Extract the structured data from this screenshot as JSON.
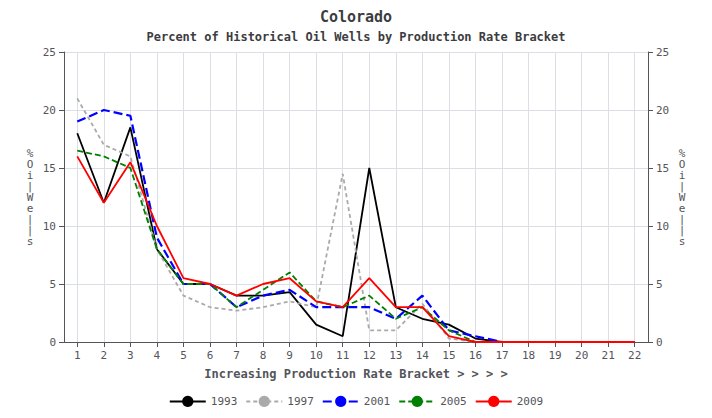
{
  "chart_data": {
    "type": "line",
    "title": "Colorado",
    "subtitle": "Percent of Historical Oil Wells by Production Rate Bracket",
    "xlabel": "Increasing Production Rate Bracket > > > >",
    "ylabel": "%\nO\ni\n|\nW\ne\n|\n|\ns",
    "y2label": "%\nO\ni\n|\nW\ne\n|\n|\ns",
    "x": [
      1,
      2,
      3,
      4,
      5,
      6,
      7,
      8,
      9,
      10,
      11,
      12,
      13,
      14,
      15,
      16,
      17,
      18,
      19,
      20,
      21,
      22
    ],
    "xlim": [
      0.5,
      22.5
    ],
    "xticks": [
      1,
      2,
      3,
      4,
      5,
      6,
      7,
      8,
      9,
      10,
      11,
      12,
      13,
      14,
      15,
      16,
      17,
      18,
      19,
      20,
      21,
      22
    ],
    "ylim": [
      0,
      25
    ],
    "yticks": [
      0,
      5,
      10,
      15,
      20,
      25
    ],
    "y2lim": [
      0,
      25
    ],
    "y2ticks": [
      0,
      5,
      10,
      15,
      20,
      25
    ],
    "grid": true,
    "legend": "bottom",
    "series": [
      {
        "name": "1993",
        "color": "#000000",
        "line_style": "solid",
        "values": [
          18,
          12,
          18.5,
          8,
          5,
          5,
          4,
          4,
          4.3,
          1.5,
          0.5,
          15,
          3,
          2,
          1.5,
          0.3,
          0,
          0,
          0,
          0,
          0,
          0
        ]
      },
      {
        "name": "1997",
        "color": "#aaaaaa",
        "line_style": "short_dashed",
        "values": [
          21,
          17,
          16,
          8,
          4,
          3,
          2.7,
          3,
          3.5,
          3,
          14.5,
          1,
          1,
          3.3,
          0.3,
          0,
          0,
          0,
          0,
          0,
          0,
          0
        ]
      },
      {
        "name": "2001",
        "color": "#0000ff",
        "line_style": "long_dashed",
        "values": [
          19,
          20,
          19.5,
          9,
          5,
          5,
          3,
          4,
          4.5,
          3,
          3,
          3,
          2,
          4,
          1,
          0.5,
          0,
          0,
          0,
          0,
          0,
          0
        ]
      },
      {
        "name": "2005",
        "color": "#008000",
        "line_style": "dashed",
        "values": [
          16.5,
          16,
          15,
          8,
          5,
          5,
          3,
          4.5,
          6,
          3.5,
          3,
          4,
          2,
          3,
          1,
          0,
          0,
          0,
          0,
          0,
          0,
          0
        ]
      },
      {
        "name": "2009",
        "color": "#ff0000",
        "line_style": "solid",
        "values": [
          16,
          12,
          15.5,
          10,
          5.5,
          5,
          4,
          5,
          5.5,
          3.5,
          3,
          5.5,
          3,
          3,
          0.5,
          0,
          0,
          0,
          0,
          0,
          0,
          0
        ]
      }
    ]
  }
}
